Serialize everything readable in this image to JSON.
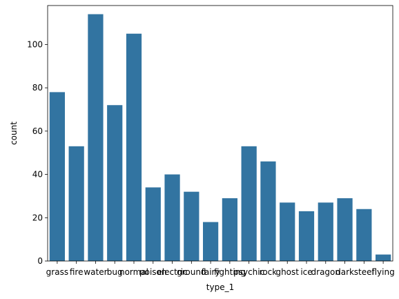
{
  "chart_data": {
    "type": "bar",
    "xlabel": "type_1",
    "ylabel": "count",
    "ylim": [
      0,
      118
    ],
    "yticks": [
      0,
      20,
      40,
      60,
      80,
      100
    ],
    "grid": false,
    "bar_color": "#3274a1",
    "categories": [
      "grass",
      "fire",
      "water",
      "bug",
      "normal",
      "poison",
      "electric",
      "ground",
      "fairy",
      "fighting",
      "psychic",
      "rock",
      "ghost",
      "ice",
      "dragon",
      "dark",
      "steel",
      "flying"
    ],
    "values": [
      78,
      53,
      114,
      72,
      105,
      34,
      40,
      32,
      18,
      29,
      53,
      46,
      27,
      23,
      27,
      29,
      24,
      3
    ]
  }
}
